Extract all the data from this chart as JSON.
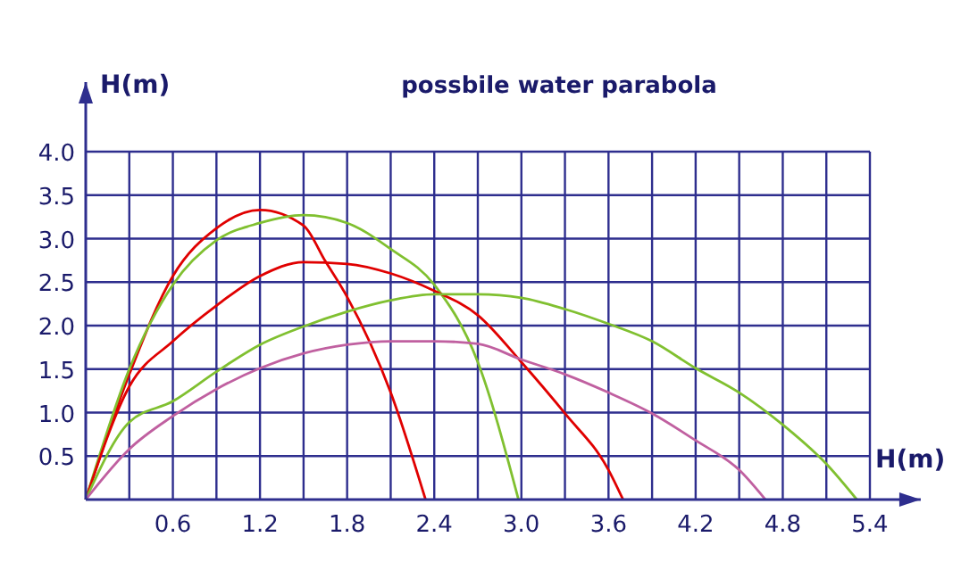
{
  "chart_data": {
    "type": "line",
    "title": "possbile water parabola",
    "xlabel": "H(m)",
    "ylabel": "H(m)",
    "xlim": [
      0,
      5.75
    ],
    "ylim": [
      0,
      4.8
    ],
    "xticks": [
      {
        "value": 0.3,
        "label": null
      },
      0.6,
      {
        "value": 0.9,
        "label": null
      },
      1.2,
      {
        "value": 1.5,
        "label": null
      },
      1.8,
      {
        "value": 2.1,
        "label": null
      },
      2.4,
      {
        "value": 2.7,
        "label": null
      },
      {
        "value": 3.0,
        "label": "3.0"
      },
      {
        "value": 3.3,
        "label": null
      },
      3.6,
      {
        "value": 3.9,
        "label": null
      },
      4.2,
      {
        "value": 4.5,
        "label": null
      },
      4.8,
      {
        "value": 5.1,
        "label": null
      },
      5.4
    ],
    "yticks": [
      0.5,
      {
        "value": 1.0,
        "label": "1.0"
      },
      1.5,
      {
        "value": 2.0,
        "label": "2.0"
      },
      2.5,
      {
        "value": 3.0,
        "label": "3.0"
      },
      3.5,
      {
        "value": 4.0,
        "label": "4.0"
      }
    ],
    "grid": true,
    "marker": "none",
    "line_style": "solid",
    "series": [
      {
        "color": "#e00000",
        "x": [
          0,
          0.3,
          0.6,
          0.9,
          1.2,
          1.5,
          1.65,
          1.8,
          2.1,
          2.34
        ],
        "values": [
          0,
          1.44,
          2.57,
          3.12,
          3.33,
          3.15,
          2.74,
          2.33,
          1.23,
          0
        ]
      },
      {
        "color": "#80c030",
        "x": [
          0,
          0.3,
          0.6,
          0.9,
          1.2,
          1.5,
          1.8,
          2.1,
          2.4,
          2.7,
          2.98
        ],
        "values": [
          0,
          1.5,
          2.47,
          2.98,
          3.18,
          3.27,
          3.18,
          2.88,
          2.47,
          1.58,
          0
        ]
      },
      {
        "color": "#e00000",
        "x": [
          0,
          0.3,
          0.6,
          0.9,
          1.2,
          1.5,
          1.8,
          2.1,
          2.4,
          2.7,
          3.0,
          3.3,
          3.6,
          3.7
        ],
        "values": [
          0,
          1.3,
          1.82,
          2.23,
          2.57,
          2.73,
          2.71,
          2.6,
          2.4,
          2.12,
          1.58,
          0.99,
          0.34,
          0
        ]
      },
      {
        "color": "#80c030",
        "x": [
          0,
          0.3,
          0.6,
          0.9,
          1.2,
          1.5,
          1.8,
          2.1,
          2.4,
          2.7,
          3.0,
          3.3,
          3.6,
          3.9,
          4.2,
          4.5,
          4.8,
          5.1,
          5.31
        ],
        "values": [
          0,
          0.89,
          1.13,
          1.47,
          1.78,
          1.99,
          2.16,
          2.29,
          2.36,
          2.36,
          2.32,
          2.19,
          2.02,
          1.82,
          1.51,
          1.23,
          0.86,
          0.41,
          0
        ]
      },
      {
        "color": "#c060a0",
        "x": [
          0,
          0.3,
          0.6,
          0.9,
          1.2,
          1.5,
          1.8,
          2.1,
          2.4,
          2.7,
          3.0,
          3.3,
          3.6,
          3.9,
          4.2,
          4.5,
          4.68
        ],
        "values": [
          0,
          0.58,
          0.96,
          1.27,
          1.51,
          1.68,
          1.78,
          1.82,
          1.82,
          1.79,
          1.61,
          1.44,
          1.23,
          0.99,
          0.68,
          0.34,
          0
        ]
      }
    ]
  }
}
